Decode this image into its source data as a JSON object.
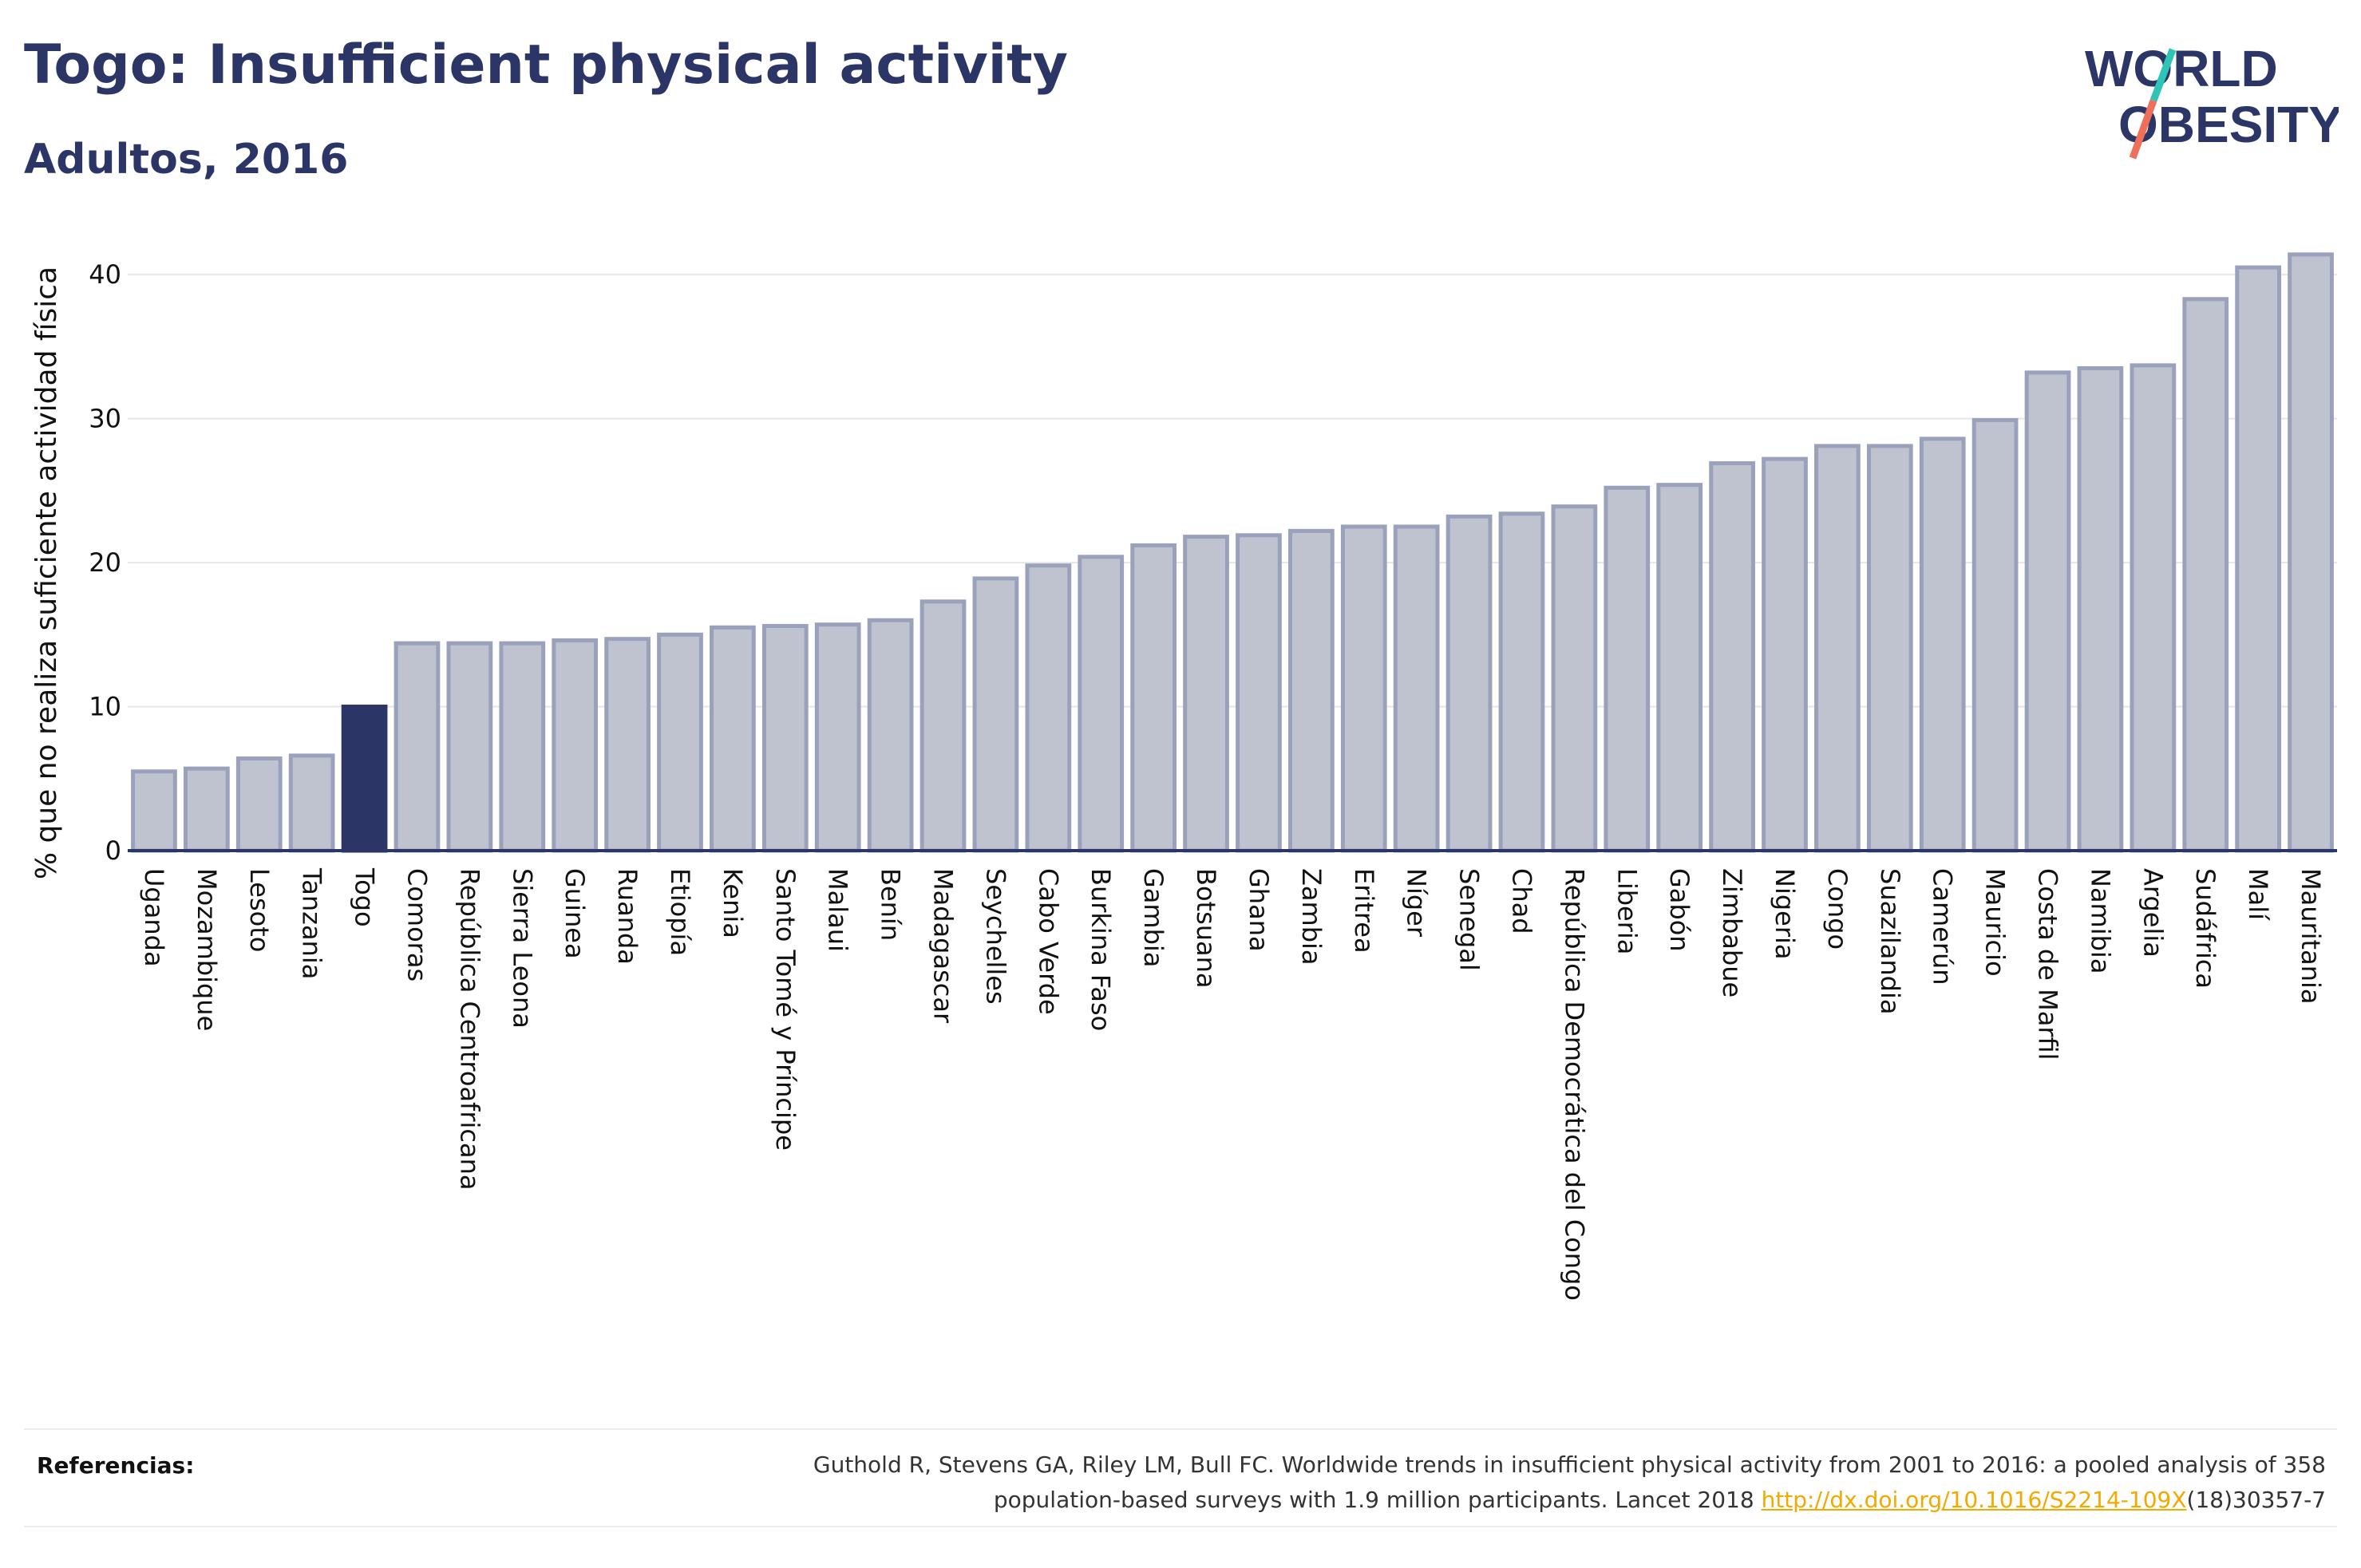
{
  "header": {
    "title": "Togo: Insufficient physical activity",
    "subtitle": "Adultos, 2016"
  },
  "logo": {
    "line1": "WORLD",
    "line2": "OBESITY",
    "colors": {
      "text": "#2b3566",
      "slash_top": "#2ec4b6",
      "slash_bottom": "#ef6f5a"
    }
  },
  "colors": {
    "highlight": "#2b3566",
    "bar_fill": "#bfc3d0",
    "bar_stroke": "#9aa1bb",
    "grid": "#e6e6e6",
    "axis_text": "#111111"
  },
  "chart_data": {
    "type": "bar",
    "title": "Togo: Insufficient physical activity",
    "subtitle": "Adultos, 2016",
    "ylabel": "% que no realiza suficiente actividad física",
    "ylim": [
      0,
      43
    ],
    "yticks": [
      0,
      10,
      20,
      30,
      40
    ],
    "grid": true,
    "highlight": "Togo",
    "categories": [
      "Uganda",
      "Mozambique",
      "Lesoto",
      "Tanzania",
      "Togo",
      "Comoras",
      "República Centroafricana",
      "Sierra Leona",
      "Guinea",
      "Ruanda",
      "Etiopía",
      "Kenia",
      "Santo Tomé y Príncipe",
      "Malaui",
      "Benín",
      "Madagascar",
      "Seychelles",
      "Cabo Verde",
      "Burkina Faso",
      "Gambia",
      "Botsuana",
      "Ghana",
      "Zambia",
      "Eritrea",
      "Níger",
      "Senegal",
      "Chad",
      "República Democrática del Congo",
      "Liberia",
      "Gabón",
      "Zimbabue",
      "Nigeria",
      "Congo",
      "Suazilandia",
      "Camerún",
      "Mauricio",
      "Costa de Marfil",
      "Namibia",
      "Argelia",
      "Sudáfrica",
      "Malí",
      "Mauritania"
    ],
    "values": [
      5.5,
      5.7,
      6.4,
      6.6,
      10.0,
      14.4,
      14.4,
      14.4,
      14.6,
      14.7,
      15.0,
      15.5,
      15.6,
      15.7,
      16.0,
      17.3,
      18.9,
      19.8,
      20.4,
      21.2,
      21.8,
      21.9,
      22.2,
      22.5,
      22.5,
      23.2,
      23.4,
      23.9,
      25.2,
      25.4,
      26.9,
      27.2,
      28.1,
      28.1,
      28.6,
      29.9,
      33.2,
      33.5,
      33.7,
      38.3,
      40.5,
      41.4
    ]
  },
  "references": {
    "label": "Referencias:",
    "text_line1": "Guthold R, Stevens GA, Riley LM, Bull FC. Worldwide trends in insufficient physical activity from 2001 to 2016: a pooled analysis of 358",
    "text_line2_pre": "population-based surveys with 1.9 million participants. Lancet 2018 ",
    "link": "http://dx.doi.org/10.1016/S2214-109X",
    "text_line2_post": "(18)30357-7"
  }
}
